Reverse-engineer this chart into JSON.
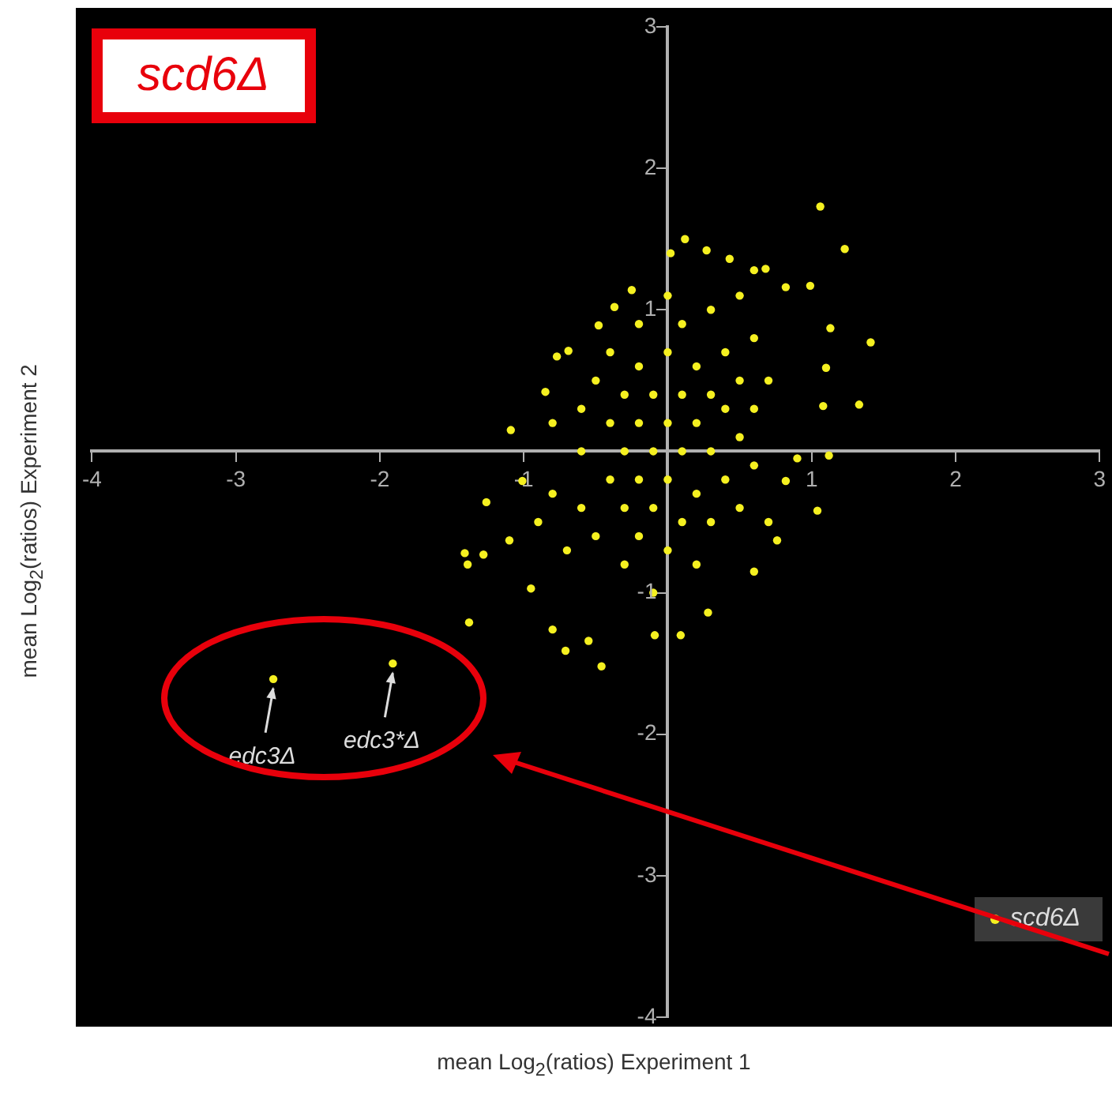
{
  "chart_data": {
    "type": "scatter",
    "title": "scd6Δ",
    "xlabel": "mean Log$_{2}$(ratios) Experiment 1",
    "ylabel": "mean Log$_{2}$(ratios) Experiment 2",
    "xlim": [
      -4,
      3
    ],
    "ylim": [
      -4,
      3
    ],
    "xticks": [
      -4,
      -3,
      -2,
      -1,
      1,
      2,
      3
    ],
    "yticks": [
      -4,
      -3,
      -2,
      -1,
      1,
      2,
      3
    ],
    "grid": false,
    "legend": "bottom right",
    "marker": "circle",
    "series": [
      {
        "name": "scd6Δ",
        "color": "#f5f020",
        "x": [
          -2.74,
          -1.91,
          1.06,
          1.23,
          1.41,
          1.33,
          0.12,
          0.99,
          -1.09,
          -1.41,
          -1.39,
          -1.38,
          -0.95,
          -0.71,
          -0.46,
          0.09,
          0.28,
          1.04,
          1.12,
          -1.26,
          -1.28,
          -0.77,
          -0.69,
          -0.25,
          0.68,
          0.6,
          0.82,
          1.13,
          1.1,
          1.08,
          0.9,
          0.82,
          0.76,
          0.6,
          -0.09,
          -0.55,
          -0.8,
          -1.1,
          -1.01,
          -0.85,
          -0.48,
          -0.37,
          0.02,
          0.27,
          0.43,
          -0.6,
          -0.6,
          -0.6,
          -0.5,
          -0.5,
          -0.4,
          -0.4,
          -0.4,
          -0.3,
          -0.3,
          -0.3,
          -0.3,
          -0.2,
          -0.2,
          -0.2,
          -0.2,
          -0.2,
          -0.1,
          -0.1,
          -0.1,
          -0.1,
          0,
          0,
          0,
          0,
          0,
          0.1,
          0.1,
          0.1,
          0.1,
          0.2,
          0.2,
          0.2,
          0.2,
          0.3,
          0.3,
          0.3,
          0.3,
          0.4,
          0.4,
          0.4,
          0.5,
          0.5,
          0.5,
          0.5,
          0.6,
          0.6,
          0.6,
          0.7,
          0.7,
          -0.8,
          -0.8,
          -0.7,
          -0.9
        ],
        "values": [
          -1.61,
          -1.5,
          1.73,
          1.43,
          0.77,
          0.33,
          1.5,
          1.17,
          0.15,
          -0.72,
          -0.8,
          -1.21,
          -0.97,
          -1.41,
          -1.52,
          -1.3,
          -1.14,
          -0.42,
          -0.03,
          -0.36,
          -0.73,
          0.67,
          0.71,
          1.14,
          1.29,
          1.28,
          1.16,
          0.87,
          0.59,
          0.32,
          -0.05,
          -0.21,
          -0.63,
          -0.85,
          -1.3,
          -1.34,
          -1.26,
          -0.63,
          -0.21,
          0.42,
          0.89,
          1.02,
          1.4,
          1.42,
          1.36,
          -0.4,
          0,
          0.3,
          -0.6,
          0.5,
          -0.2,
          0.2,
          0.7,
          -0.8,
          -0.4,
          0,
          0.4,
          -0.6,
          -0.2,
          0.2,
          0.6,
          0.9,
          -1,
          -0.4,
          0,
          0.4,
          -0.7,
          -0.2,
          0.2,
          0.7,
          1.1,
          -0.5,
          0,
          0.4,
          0.9,
          -0.8,
          -0.3,
          0.2,
          0.6,
          -0.5,
          0,
          0.4,
          1,
          -0.2,
          0.3,
          0.7,
          -0.4,
          0.1,
          0.5,
          1.1,
          -0.1,
          0.3,
          0.8,
          -0.5,
          0.5,
          -0.3,
          0.2,
          -0.7,
          -0.5
        ]
      }
    ],
    "annotations": [
      {
        "text": "edc3Δ",
        "x": -2.74,
        "y": -1.61
      },
      {
        "text": "edc3*Δ",
        "x": -1.91,
        "y": -1.5
      }
    ]
  }
}
